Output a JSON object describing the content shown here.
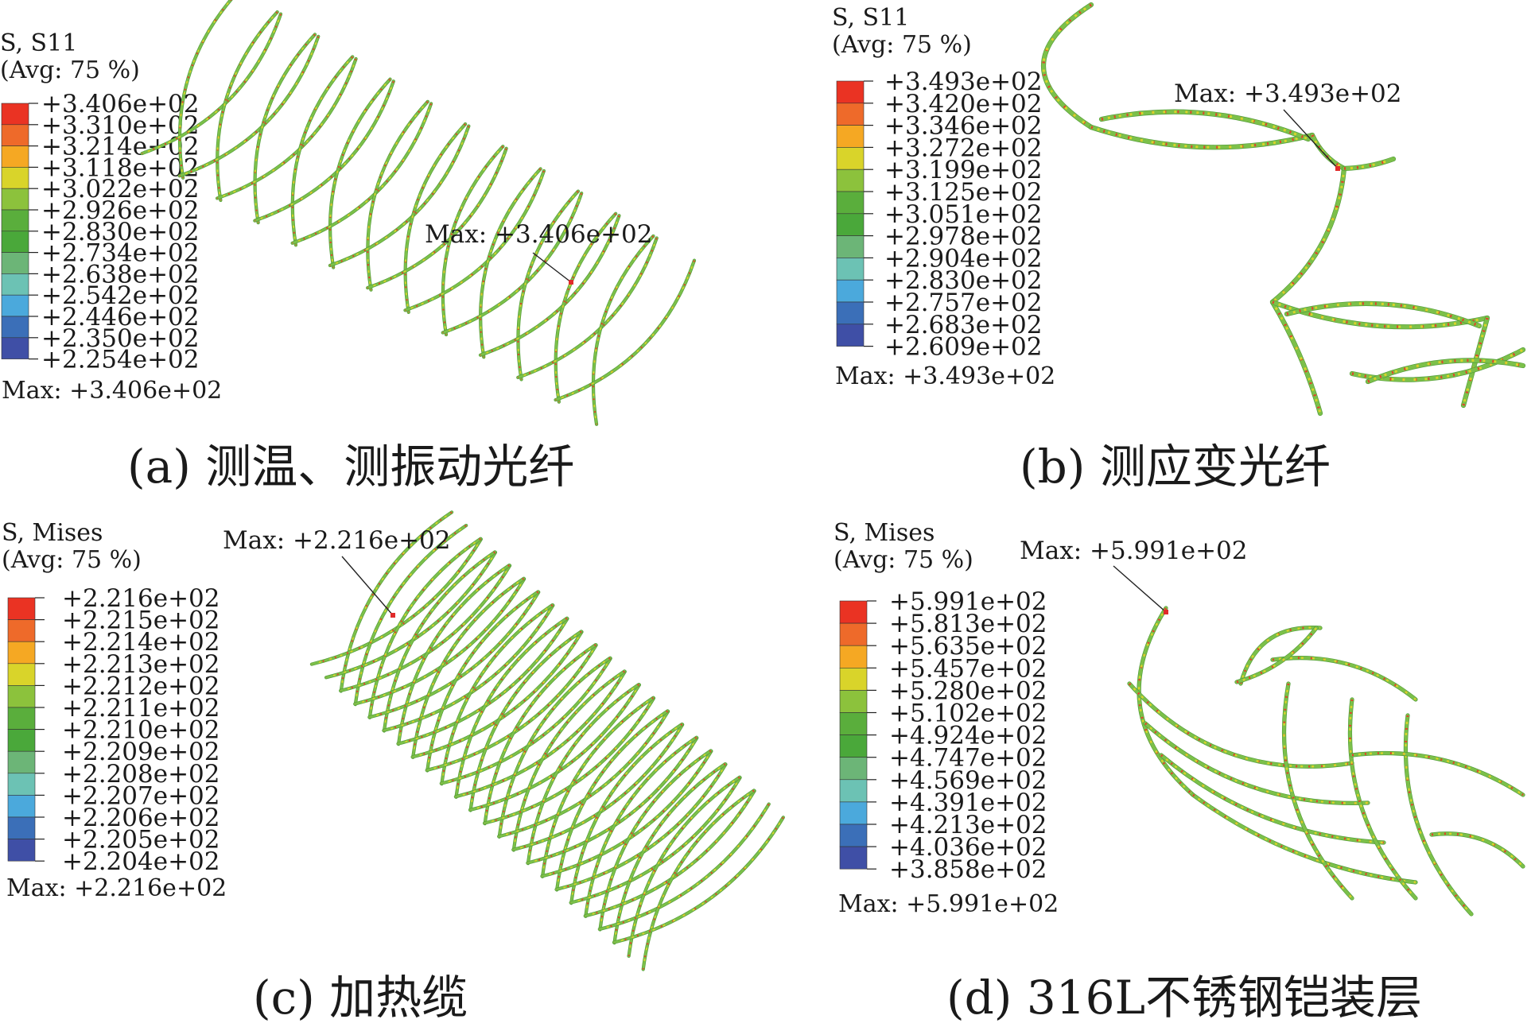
{
  "colors": [
    "#ea3323",
    "#ee6a2a",
    "#f5a823",
    "#d9d42a",
    "#8cc23c",
    "#5aae3c",
    "#4aa83a",
    "#6cb577",
    "#6cc2b4",
    "#4ba9dc",
    "#3b6fb8",
    "#3f4fa6",
    "#2f3f8f"
  ],
  "panels": [
    {
      "id": "a",
      "field": "S, S11",
      "avg": "(Avg: 75 %)",
      "levels": [
        "+3.406e+02",
        "+3.310e+02",
        "+3.214e+02",
        "+3.118e+02",
        "+3.022e+02",
        "+2.926e+02",
        "+2.830e+02",
        "+2.734e+02",
        "+2.638e+02",
        "+2.542e+02",
        "+2.446e+02",
        "+2.350e+02",
        "+2.254e+02"
      ],
      "max_label": "Max: +3.406e+02",
      "callout": "Max: +3.406e+02",
      "caption": "(a) 测温、测振动光纤"
    },
    {
      "id": "b",
      "field": "S, S11",
      "avg": "(Avg: 75 %)",
      "levels": [
        "+3.493e+02",
        "+3.420e+02",
        "+3.346e+02",
        "+3.272e+02",
        "+3.199e+02",
        "+3.125e+02",
        "+3.051e+02",
        "+2.978e+02",
        "+2.904e+02",
        "+2.830e+02",
        "+2.757e+02",
        "+2.683e+02",
        "+2.609e+02"
      ],
      "max_label": "Max: +3.493e+02",
      "callout": "Max: +3.493e+02",
      "caption": "(b) 测应变光纤"
    },
    {
      "id": "c",
      "field": "S, Mises",
      "avg": "(Avg: 75 %)",
      "levels": [
        "+2.216e+02",
        "+2.215e+02",
        "+2.214e+02",
        "+2.213e+02",
        "+2.212e+02",
        "+2.211e+02",
        "+2.210e+02",
        "+2.209e+02",
        "+2.208e+02",
        "+2.207e+02",
        "+2.206e+02",
        "+2.205e+02",
        "+2.204e+02"
      ],
      "max_label": "Max: +2.216e+02",
      "callout": "Max: +2.216e+02",
      "caption": "(c) 加热缆"
    },
    {
      "id": "d",
      "field": "S, Mises",
      "avg": "(Avg: 75 %)",
      "levels": [
        "+5.991e+02",
        "+5.813e+02",
        "+5.635e+02",
        "+5.457e+02",
        "+5.280e+02",
        "+5.102e+02",
        "+4.924e+02",
        "+4.747e+02",
        "+4.569e+02",
        "+4.391e+02",
        "+4.213e+02",
        "+4.036e+02",
        "+3.858e+02"
      ],
      "max_label": "Max: +5.991e+02",
      "callout": "Max: +5.991e+02",
      "caption": "(d) 316L不锈钢铠装层"
    }
  ]
}
